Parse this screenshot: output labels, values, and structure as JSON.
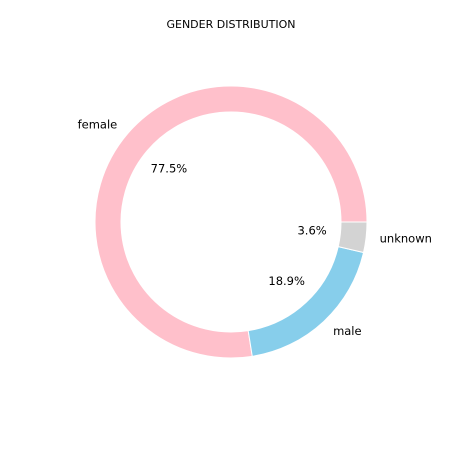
{
  "chart_data": {
    "type": "pie",
    "style": "donut",
    "title": "GENDER DISTRIBUTION",
    "start_angle_deg": 0,
    "direction": "counterclockwise",
    "slices": [
      {
        "label": "female",
        "pct_label": "77.5%",
        "value": 77.5,
        "color": "#FFC0CB"
      },
      {
        "label": "male",
        "pct_label": "18.9%",
        "value": 18.9,
        "color": "#87CEEB"
      },
      {
        "label": "unknown",
        "pct_label": "3.6%",
        "value": 3.6,
        "color": "#D3D3D3"
      }
    ]
  }
}
